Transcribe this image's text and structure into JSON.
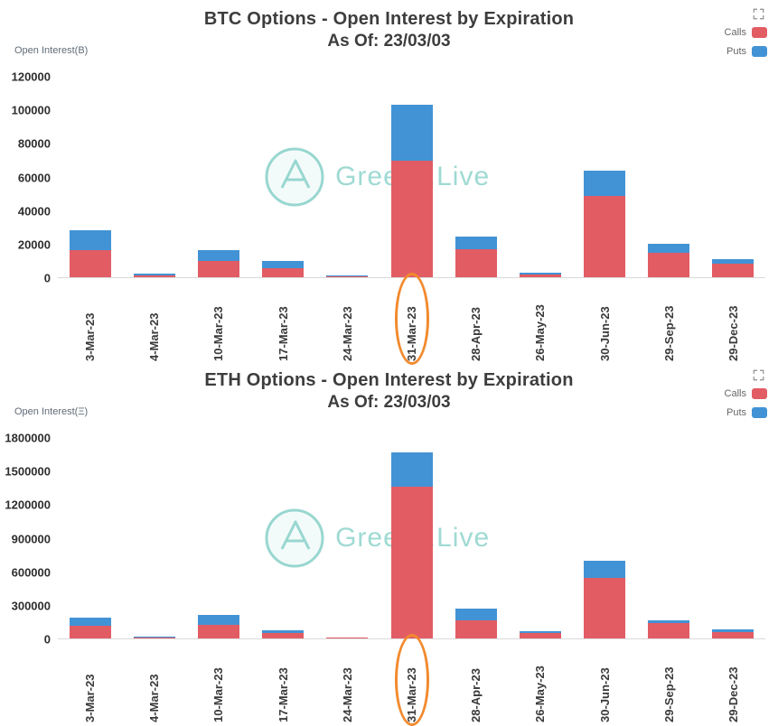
{
  "watermark": {
    "text": "Greeks.Live"
  },
  "colors": {
    "calls": "#e25c64",
    "puts": "#4293d5",
    "highlight_ring": "#f28a2e",
    "watermark": "#8ed3cb",
    "title_text": "#3d3d3d"
  },
  "chart_data": [
    {
      "type": "bar",
      "stacked": true,
      "title": "BTC Options - Open Interest by Expiration",
      "subtitle": "As Of: 23/03/03",
      "ylabel": "Open Interest(B)",
      "xlabel": "",
      "ylim": [
        0,
        120000
      ],
      "yticks": [
        0,
        20000,
        40000,
        60000,
        80000,
        100000,
        120000
      ],
      "grid": false,
      "legend_position": "top-right",
      "categories": [
        "3-Mar-23",
        "4-Mar-23",
        "10-Mar-23",
        "17-Mar-23",
        "24-Mar-23",
        "31-Mar-23",
        "28-Apr-23",
        "26-May-23",
        "30-Jun-23",
        "29-Sep-23",
        "29-Dec-23"
      ],
      "series": [
        {
          "name": "Calls",
          "color": "#e25c64",
          "values": [
            16000,
            1000,
            10000,
            5500,
            700,
            69500,
            16500,
            1700,
            48500,
            14500,
            8000
          ]
        },
        {
          "name": "Puts",
          "color": "#4293d5",
          "values": [
            12000,
            1000,
            6500,
            4200,
            300,
            33500,
            8000,
            1000,
            15500,
            5400,
            3000
          ]
        }
      ],
      "highlighted_category": "31-Mar-23"
    },
    {
      "type": "bar",
      "stacked": true,
      "title": "ETH Options - Open Interest by Expiration",
      "subtitle": "As Of: 23/03/03",
      "ylabel": "Open Interest(Ξ)",
      "xlabel": "",
      "ylim": [
        0,
        1800000
      ],
      "yticks": [
        0,
        300000,
        600000,
        900000,
        1200000,
        1500000,
        1800000
      ],
      "grid": false,
      "legend_position": "top-right",
      "categories": [
        "3-Mar-23",
        "4-Mar-23",
        "10-Mar-23",
        "17-Mar-23",
        "24-Mar-23",
        "31-Mar-23",
        "28-Apr-23",
        "26-May-23",
        "30-Jun-23",
        "29-Sep-23",
        "29-Dec-23"
      ],
      "series": [
        {
          "name": "Calls",
          "color": "#e25c64",
          "values": [
            110000,
            8000,
            120000,
            45000,
            8000,
            1360000,
            160000,
            45000,
            540000,
            140000,
            60000
          ]
        },
        {
          "name": "Puts",
          "color": "#4293d5",
          "values": [
            80000,
            8000,
            88000,
            27000,
            4000,
            310000,
            105000,
            20000,
            160000,
            25000,
            20000
          ]
        }
      ],
      "highlighted_category": "31-Mar-23"
    }
  ]
}
